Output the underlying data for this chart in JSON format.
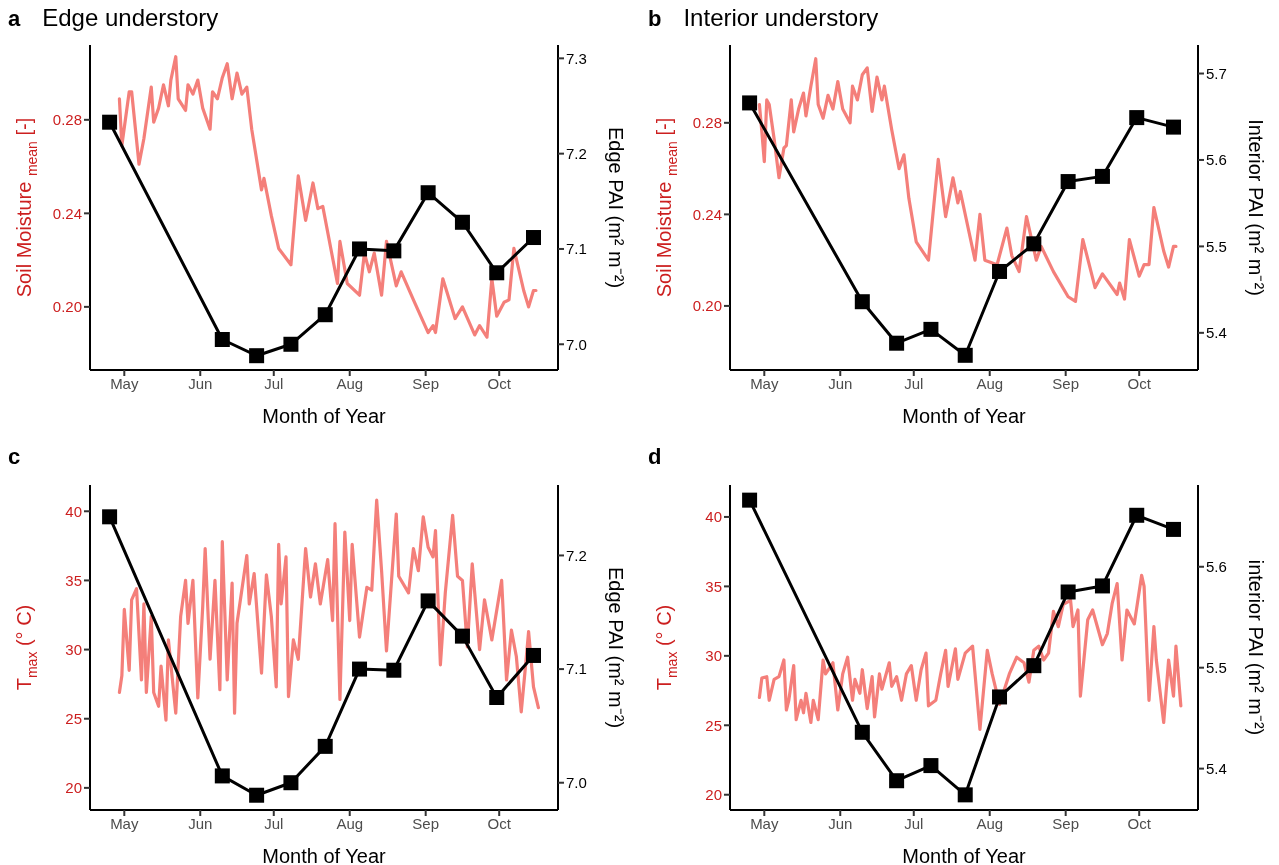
{
  "chart_data": [
    {
      "type": "line",
      "title": "Edge understory",
      "annotations": [
        "a"
      ],
      "xlabel": "Month of Year",
      "ylabel": "Soil Moisture $_{mean}$ [-]",
      "y2label": "Edge PAI (m² m⁻²)",
      "xlim": [
        "--04-17",
        "--10-25"
      ],
      "xticks": [
        {
          "value": "--05-01",
          "label": "May"
        },
        {
          "value": "--06-01",
          "label": "Jun"
        },
        {
          "value": "--07-01",
          "label": "Jul"
        },
        {
          "value": "--08-01",
          "label": "Aug"
        },
        {
          "value": "--09-01",
          "label": "Sep"
        },
        {
          "value": "--10-01",
          "label": "Oct"
        }
      ],
      "ylim": [
        0.173,
        0.312
      ],
      "yticks": [
        {
          "value": 0.2,
          "label": "0.20"
        },
        {
          "value": 0.24,
          "label": "0.24"
        },
        {
          "value": 0.28,
          "label": "0.28"
        }
      ],
      "y2lim": [
        6.973,
        7.314
      ],
      "y2ticks": [
        {
          "value": 7,
          "label": "7.0"
        },
        {
          "value": 7.1,
          "label": "7.1"
        },
        {
          "value": 7.2,
          "label": "7.2"
        },
        {
          "value": 7.3,
          "label": "7.3"
        }
      ],
      "series": [
        {
          "color": "#f47f7a",
          "marker": "none",
          "x": [
            "--04-29",
            "--04-30",
            "--05-03",
            "--05-04",
            "--05-07",
            "--05-09",
            "--05-12",
            "--05-13",
            "--05-15",
            "--05-17",
            "--05-19",
            "--05-20",
            "--05-22",
            "--05-23",
            "--05-26",
            "--05-27",
            "--05-29",
            "--05-31",
            "--06-02",
            "--06-05",
            "--06-06",
            "--06-08",
            "--06-10",
            "--06-12",
            "--06-14",
            "--06-16",
            "--06-18",
            "--06-20",
            "--06-22",
            "--06-26",
            "--06-27",
            "--06-30",
            "--07-03",
            "--07-08",
            "--07-11",
            "--07-14",
            "--07-17",
            "--07-19",
            "--07-21",
            "--07-27",
            "--07-28",
            "--07-31",
            "--08-05",
            "--08-07",
            "--08-09",
            "--08-11",
            "--08-14",
            "--08-16",
            "--08-20",
            "--08-22",
            "--08-27",
            "--09-02",
            "--09-04",
            "--09-05",
            "--09-08",
            "--09-13",
            "--09-16",
            "--09-21",
            "--09-23",
            "--09-26",
            "--09-28",
            "--09-30",
            "--10-03",
            "--10-05",
            "--10-07",
            "--10-11",
            "--10-13",
            "--10-15",
            "--10-16"
          ],
          "values": [
            0.289,
            0.269,
            0.292,
            0.292,
            0.261,
            0.272,
            0.294,
            0.279,
            0.285,
            0.295,
            0.286,
            0.297,
            0.307,
            0.289,
            0.284,
            0.295,
            0.291,
            0.297,
            0.285,
            0.276,
            0.292,
            0.289,
            0.298,
            0.304,
            0.289,
            0.3,
            0.291,
            0.294,
            0.276,
            0.25,
            0.255,
            0.239,
            0.225,
            0.218,
            0.256,
            0.237,
            0.253,
            0.242,
            0.243,
            0.21,
            0.228,
            0.21,
            0.205,
            0.223,
            0.215,
            0.223,
            0.205,
            0.228,
            0.209,
            0.215,
            0.203,
            0.189,
            0.192,
            0.189,
            0.212,
            0.195,
            0.2,
            0.188,
            0.192,
            0.187,
            0.212,
            0.196,
            0.202,
            0.203,
            0.225,
            0.207,
            0.2,
            0.207,
            0.207
          ]
        },
        {
          "color": "#000000",
          "marker": "square",
          "axis": "y2",
          "x": [
            "--04-25",
            "--06-10",
            "--06-24",
            "--07-08",
            "--07-22",
            "--08-05",
            "--08-19",
            "--09-02",
            "--09-16",
            "--09-30",
            "--10-15"
          ],
          "values": [
            7.233,
            7.005,
            6.988,
            7.0,
            7.031,
            7.1,
            7.098,
            7.159,
            7.128,
            7.075,
            7.112
          ]
        }
      ]
    },
    {
      "type": "line",
      "title": "Interior understory",
      "annotations": [
        "b"
      ],
      "xlabel": "Month of Year",
      "ylabel": "Soil Moisture $_{mean}$ [-]",
      "y2label": "Interior PAI (m² m⁻²)",
      "xlim": [
        "--04-17",
        "--10-25"
      ],
      "xticks": [
        {
          "value": "--05-01",
          "label": "May"
        },
        {
          "value": "--06-01",
          "label": "Jun"
        },
        {
          "value": "--07-01",
          "label": "Jul"
        },
        {
          "value": "--08-01",
          "label": "Aug"
        },
        {
          "value": "--09-01",
          "label": "Sep"
        },
        {
          "value": "--10-01",
          "label": "Oct"
        }
      ],
      "ylim": [
        0.172,
        0.314
      ],
      "yticks": [
        {
          "value": 0.2,
          "label": "0.20"
        },
        {
          "value": 0.24,
          "label": "0.24"
        },
        {
          "value": 0.28,
          "label": "0.28"
        }
      ],
      "y2lim": [
        5.357,
        5.733
      ],
      "y2ticks": [
        5.4,
        5.5,
        5.6,
        5.7
      ],
      "series": [
        {
          "color": "#f47f7a",
          "marker": "none",
          "x": [
            "--04-29",
            "--04-30",
            "--05-01",
            "--05-02",
            "--05-03",
            "--05-05",
            "--05-07",
            "--05-09",
            "--05-10",
            "--05-12",
            "--05-13",
            "--05-15",
            "--05-17",
            "--05-18",
            "--05-20",
            "--05-22",
            "--05-23",
            "--05-25",
            "--05-27",
            "--05-29",
            "--05-31",
            "--06-02",
            "--06-05",
            "--06-06",
            "--06-08",
            "--06-10",
            "--06-12",
            "--06-14",
            "--06-16",
            "--06-18",
            "--06-19",
            "--06-22",
            "--06-25",
            "--06-27",
            "--06-29",
            "--07-02",
            "--07-07",
            "--07-11",
            "--07-14",
            "--07-17",
            "--07-19",
            "--07-20",
            "--07-26",
            "--07-28",
            "--07-30",
            "--08-04",
            "--08-08",
            "--08-10",
            "--08-13",
            "--08-16",
            "--08-20",
            "--08-22",
            "--08-27",
            "--09-02",
            "--09-05",
            "--09-08",
            "--09-13",
            "--09-16",
            "--09-22",
            "--09-23",
            "--09-25",
            "--09-27",
            "--10-01",
            "--10-03",
            "--10-05",
            "--10-07",
            "--10-11",
            "--10-13",
            "--10-15",
            "--10-16"
          ],
          "values": [
            0.288,
            0.276,
            0.263,
            0.29,
            0.288,
            0.273,
            0.256,
            0.269,
            0.27,
            0.29,
            0.276,
            0.286,
            0.293,
            0.283,
            0.296,
            0.308,
            0.288,
            0.282,
            0.292,
            0.286,
            0.298,
            0.286,
            0.28,
            0.296,
            0.29,
            0.301,
            0.304,
            0.285,
            0.3,
            0.29,
            0.296,
            0.277,
            0.26,
            0.266,
            0.247,
            0.228,
            0.22,
            0.264,
            0.239,
            0.256,
            0.245,
            0.25,
            0.22,
            0.24,
            0.22,
            0.218,
            0.234,
            0.222,
            0.215,
            0.239,
            0.22,
            0.226,
            0.215,
            0.204,
            0.202,
            0.229,
            0.208,
            0.214,
            0.205,
            0.21,
            0.203,
            0.229,
            0.213,
            0.218,
            0.218,
            0.243,
            0.224,
            0.217,
            0.226,
            0.226
          ]
        },
        {
          "color": "#000000",
          "marker": "square",
          "axis": "y2",
          "x": [
            "--04-25",
            "--06-10",
            "--06-24",
            "--07-08",
            "--07-22",
            "--08-05",
            "--08-19",
            "--09-02",
            "--09-16",
            "--09-30",
            "--10-15"
          ],
          "values": [
            5.666,
            5.436,
            5.388,
            5.404,
            5.374,
            5.471,
            5.503,
            5.575,
            5.581,
            5.649,
            5.638
          ]
        }
      ]
    },
    {
      "type": "line",
      "annotations": [
        "c"
      ],
      "xlabel": "Month of Year",
      "ylabel": "T$_{max}$ (° C)",
      "y2label": "Edge PAI (m² m⁻²)",
      "xlim": [
        "--04-17",
        "--10-25"
      ],
      "xticks": [
        {
          "value": "--05-01",
          "label": "May"
        },
        {
          "value": "--06-01",
          "label": "Jun"
        },
        {
          "value": "--07-01",
          "label": "Jul"
        },
        {
          "value": "--08-01",
          "label": "Aug"
        },
        {
          "value": "--09-01",
          "label": "Sep"
        },
        {
          "value": "--10-01",
          "label": "Oct"
        }
      ],
      "ylim": [
        18.4,
        41.9
      ],
      "yticks": [
        20,
        25,
        30,
        35,
        40
      ],
      "y2lim": [
        6.976,
        7.262
      ],
      "y2ticks": [
        {
          "value": 7,
          "label": "7.0"
        },
        {
          "value": 7.1,
          "label": "7.1"
        },
        {
          "value": 7.2,
          "label": "7.2"
        }
      ],
      "series": [
        {
          "color": "#f47f7a",
          "marker": "none",
          "x": [
            "--04-29",
            "--04-30",
            "--05-01",
            "--05-03",
            "--05-04",
            "--05-06",
            "--05-08",
            "--05-09",
            "--05-10",
            "--05-12",
            "--05-13",
            "--05-15",
            "--05-16",
            "--05-18",
            "--05-19",
            "--05-22",
            "--05-24",
            "--05-26",
            "--05-27",
            "--05-29",
            "--05-31",
            "--06-02",
            "--06-03",
            "--06-05",
            "--06-07",
            "--06-09",
            "--06-10",
            "--06-12",
            "--06-14",
            "--06-15",
            "--06-16",
            "--06-20",
            "--06-21",
            "--06-23",
            "--06-26",
            "--06-28",
            "--06-30",
            "--07-02",
            "--07-03",
            "--07-04",
            "--07-06",
            "--07-07",
            "--07-09",
            "--07-11",
            "--07-14",
            "--07-16",
            "--07-18",
            "--07-20",
            "--07-23",
            "--07-25",
            "--07-26",
            "--07-28",
            "--07-30",
            "--08-01",
            "--08-02",
            "--08-05",
            "--08-08",
            "--08-10",
            "--08-12",
            "--08-14",
            "--08-16",
            "--08-20",
            "--08-21",
            "--08-25",
            "--08-27",
            "--08-29",
            "--08-31",
            "--09-02",
            "--09-04",
            "--09-05",
            "--09-07",
            "--09-09",
            "--09-12",
            "--09-14",
            "--09-16",
            "--09-18",
            "--09-20",
            "--09-23",
            "--09-25",
            "--09-28",
            "--10-02",
            "--10-04",
            "--10-06",
            "--10-08",
            "--10-10",
            "--10-12",
            "--10-13",
            "--10-15",
            "--10-17"
          ],
          "values": [
            26.9,
            28.1,
            32.9,
            28.5,
            33.6,
            34.4,
            27.8,
            33.3,
            26.9,
            32.4,
            26.9,
            25.9,
            28.8,
            24.9,
            30.7,
            25.4,
            32.4,
            35.0,
            31.9,
            35.0,
            26.5,
            33.1,
            37.3,
            29.3,
            35.0,
            27.1,
            37.8,
            27.8,
            34.8,
            25.4,
            31.9,
            36.8,
            33.3,
            35.5,
            28.3,
            35.4,
            32.4,
            27.3,
            37.6,
            33.3,
            36.7,
            26.6,
            30.7,
            29.3,
            37.3,
            33.8,
            36.2,
            33.3,
            36.5,
            32.1,
            39.1,
            26.4,
            38.5,
            32.1,
            37.6,
            30.9,
            34.5,
            34.3,
            40.8,
            35.7,
            29.9,
            39.8,
            35.3,
            34.1,
            37.3,
            35.7,
            39.6,
            37.4,
            36.7,
            38.6,
            28.9,
            34.1,
            39.7,
            35.3,
            35.0,
            30.2,
            36.2,
            30.0,
            33.6,
            30.7,
            35.0,
            27.8,
            31.4,
            29.5,
            25.5,
            29.3,
            31.3,
            27.3,
            25.8
          ]
        },
        {
          "color": "#000000",
          "marker": "square",
          "axis": "y2",
          "x": [
            "--04-25",
            "--06-10",
            "--06-24",
            "--07-08",
            "--07-22",
            "--08-05",
            "--08-19",
            "--09-02",
            "--09-16",
            "--09-30",
            "--10-15"
          ],
          "values": [
            7.234,
            7.006,
            6.989,
            7.0,
            7.032,
            7.1,
            7.099,
            7.16,
            7.129,
            7.075,
            7.112
          ]
        }
      ]
    },
    {
      "type": "line",
      "annotations": [
        "d"
      ],
      "xlabel": "Month of Year",
      "ylabel": "T$_{max}$ (° C)",
      "y2label": "interior PAI (m² m⁻²)",
      "xlim": [
        "--04-17",
        "--10-25"
      ],
      "xticks": [
        {
          "value": "--05-01",
          "label": "May"
        },
        {
          "value": "--06-01",
          "label": "Jun"
        },
        {
          "value": "--07-01",
          "label": "Jul"
        },
        {
          "value": "--08-01",
          "label": "Aug"
        },
        {
          "value": "--09-01",
          "label": "Sep"
        },
        {
          "value": "--10-01",
          "label": "Oct"
        }
      ],
      "ylim": [
        18.9,
        42.3
      ],
      "yticks": [
        20,
        25,
        30,
        35,
        40
      ],
      "y2lim": [
        5.359,
        5.681
      ],
      "y2ticks": [
        5.4,
        5.5,
        5.6
      ],
      "series": [
        {
          "color": "#f47f7a",
          "marker": "none",
          "x": [
            "--04-29",
            "--04-30",
            "--05-02",
            "--05-03",
            "--05-05",
            "--05-07",
            "--05-09",
            "--05-10",
            "--05-11",
            "--05-13",
            "--05-14",
            "--05-16",
            "--05-17",
            "--05-18",
            "--05-20",
            "--05-21",
            "--05-23",
            "--05-25",
            "--05-26",
            "--05-29",
            "--05-31",
            "--06-02",
            "--06-04",
            "--06-06",
            "--06-07",
            "--06-09",
            "--06-10",
            "--06-12",
            "--06-14",
            "--06-15",
            "--06-17",
            "--06-18",
            "--06-21",
            "--06-22",
            "--06-24",
            "--06-26",
            "--06-28",
            "--06-30",
            "--07-02",
            "--07-04",
            "--07-06",
            "--07-07",
            "--07-10",
            "--07-12",
            "--07-14",
            "--07-15",
            "--07-18",
            "--07-19",
            "--07-22",
            "--07-25",
            "--07-28",
            "--07-31",
            "--08-02",
            "--08-05",
            "--08-09",
            "--08-12",
            "--08-15",
            "--08-17",
            "--08-19",
            "--08-21",
            "--08-23",
            "--08-25",
            "--08-27",
            "--08-29",
            "--08-31",
            "--09-03",
            "--09-04",
            "--09-06",
            "--09-07",
            "--09-10",
            "--09-12",
            "--09-16",
            "--09-18",
            "--09-20",
            "--09-22",
            "--09-24",
            "--09-26",
            "--09-29",
            "--10-02",
            "--10-03",
            "--10-05",
            "--10-07",
            "--10-08",
            "--10-11",
            "--10-13",
            "--10-15",
            "--10-16",
            "--10-18"
          ],
          "values": [
            27.0,
            28.4,
            28.5,
            26.8,
            28.3,
            28.5,
            29.7,
            26.1,
            26.8,
            29.3,
            25.4,
            26.8,
            25.9,
            27.3,
            25.2,
            26.8,
            25.4,
            29.7,
            28.7,
            29.5,
            26.1,
            28.7,
            29.9,
            26.8,
            28.3,
            27.3,
            29.0,
            26.2,
            28.5,
            25.6,
            28.7,
            27.6,
            29.5,
            27.8,
            28.5,
            26.8,
            28.7,
            29.3,
            26.8,
            29.0,
            30.2,
            26.4,
            26.8,
            28.7,
            30.4,
            27.8,
            30.5,
            28.3,
            30.2,
            30.7,
            24.7,
            30.4,
            28.7,
            26.5,
            28.7,
            29.9,
            29.5,
            28.1,
            30.4,
            30.7,
            29.7,
            30.2,
            33.2,
            32.1,
            33.7,
            34.0,
            32.1,
            33.3,
            27.1,
            32.6,
            33.3,
            30.8,
            31.6,
            33.8,
            35.2,
            29.7,
            33.3,
            32.3,
            35.8,
            35.0,
            26.8,
            32.1,
            29.7,
            25.2,
            29.7,
            27.1,
            30.7,
            26.4
          ]
        },
        {
          "color": "#000000",
          "marker": "square",
          "axis": "y2",
          "x": [
            "--04-25",
            "--06-10",
            "--06-24",
            "--07-08",
            "--07-22",
            "--08-05",
            "--08-19",
            "--09-02",
            "--09-16",
            "--09-30",
            "--10-15"
          ],
          "values": [
            5.666,
            5.436,
            5.388,
            5.403,
            5.374,
            5.471,
            5.502,
            5.575,
            5.581,
            5.651,
            5.637
          ]
        }
      ]
    }
  ]
}
